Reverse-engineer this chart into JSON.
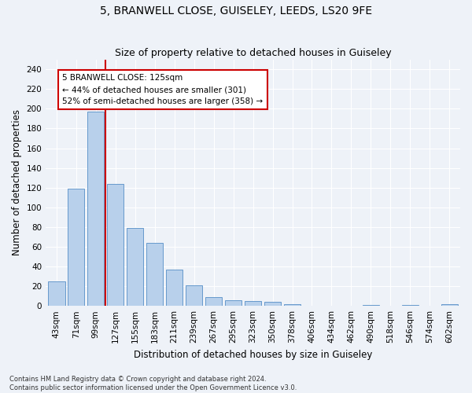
{
  "title": "5, BRANWELL CLOSE, GUISELEY, LEEDS, LS20 9FE",
  "subtitle": "Size of property relative to detached houses in Guiseley",
  "xlabel": "Distribution of detached houses by size in Guiseley",
  "ylabel": "Number of detached properties",
  "bar_labels": [
    "43sqm",
    "71sqm",
    "99sqm",
    "127sqm",
    "155sqm",
    "183sqm",
    "211sqm",
    "239sqm",
    "267sqm",
    "295sqm",
    "323sqm",
    "350sqm",
    "378sqm",
    "406sqm",
    "434sqm",
    "462sqm",
    "490sqm",
    "518sqm",
    "546sqm",
    "574sqm",
    "602sqm"
  ],
  "bar_values": [
    25,
    119,
    197,
    124,
    79,
    64,
    37,
    21,
    9,
    6,
    5,
    4,
    2,
    0,
    0,
    0,
    1,
    0,
    1,
    0,
    2
  ],
  "bar_color": "#b8d0eb",
  "bar_edge_color": "#6699cc",
  "reference_line_index": 3,
  "reference_line_color": "#cc0000",
  "annotation_text": "5 BRANWELL CLOSE: 125sqm\n← 44% of detached houses are smaller (301)\n52% of semi-detached houses are larger (358) →",
  "annotation_box_color": "#ffffff",
  "annotation_box_edge_color": "#cc0000",
  "ylim": [
    0,
    250
  ],
  "yticks": [
    0,
    20,
    40,
    60,
    80,
    100,
    120,
    140,
    160,
    180,
    200,
    220,
    240
  ],
  "footnote1": "Contains HM Land Registry data © Crown copyright and database right 2024.",
  "footnote2": "Contains public sector information licensed under the Open Government Licence v3.0.",
  "background_color": "#eef2f8",
  "plot_background_color": "#eef2f8",
  "title_fontsize": 10,
  "subtitle_fontsize": 9,
  "xlabel_fontsize": 8.5,
  "ylabel_fontsize": 8.5,
  "tick_fontsize": 7.5,
  "footnote_fontsize": 6.0
}
